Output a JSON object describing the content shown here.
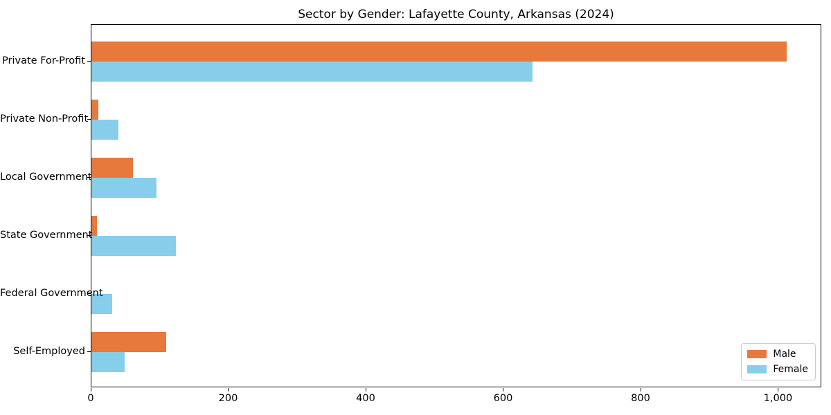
{
  "chart_data": {
    "type": "bar",
    "orientation": "horizontal",
    "title": "Sector by Gender: Lafayette County, Arkansas (2024)",
    "categories": [
      "Private For-Profit",
      "Private Non-Profit",
      "Local Government",
      "State Government",
      "Federal Government",
      "Self-Employed"
    ],
    "series": [
      {
        "name": "Male",
        "color": "#E8793D",
        "values": [
          1012,
          10,
          60,
          8,
          0,
          109
        ]
      },
      {
        "name": "Female",
        "color": "#87CEEB",
        "values": [
          642,
          39,
          95,
          123,
          30,
          48
        ]
      }
    ],
    "xlabel": "",
    "ylabel": "",
    "xlim": [
      0,
      1063
    ],
    "xticks": [
      0,
      200,
      400,
      600,
      800,
      1000
    ],
    "xtick_labels": [
      "0",
      "200",
      "400",
      "600",
      "800",
      "1,000"
    ],
    "grid": false,
    "legend": {
      "position": "lower right",
      "entries": [
        "Male",
        "Female"
      ]
    }
  }
}
